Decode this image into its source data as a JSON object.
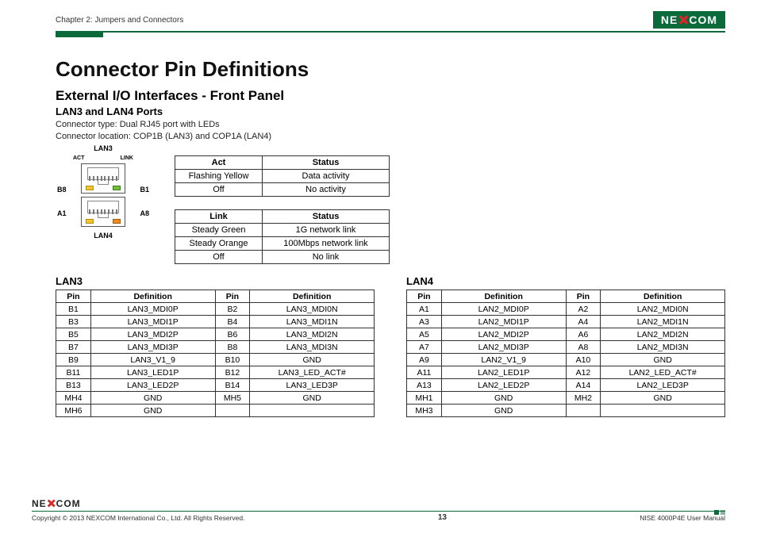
{
  "brand": "NEXCOM",
  "header": {
    "chapter": "Chapter 2: Jumpers and Connectors"
  },
  "title": "Connector Pin Definitions",
  "subtitle": "External I/O Interfaces - Front Panel",
  "section": "LAN3 and LAN4 Ports",
  "connector_type": "Connector type: Dual RJ45 port with LEDs",
  "connector_location": "Connector location: COP1B (LAN3) and COP1A (LAN4)",
  "diagram_labels": {
    "top": "LAN3",
    "bottom": "LAN4",
    "act": "ACT",
    "link": "LINK",
    "b8": "B8",
    "b1": "B1",
    "a1": "A1",
    "a8": "A8"
  },
  "act_table": {
    "headers": [
      "Act",
      "Status"
    ],
    "rows": [
      [
        "Flashing Yellow",
        "Data activity"
      ],
      [
        "Off",
        "No activity"
      ]
    ]
  },
  "link_table": {
    "headers": [
      "Link",
      "Status"
    ],
    "rows": [
      [
        "Steady Green",
        "1G network link"
      ],
      [
        "Steady Orange",
        "100Mbps network link"
      ],
      [
        "Off",
        "No link"
      ]
    ]
  },
  "lan3": {
    "title": "LAN3",
    "headers": [
      "Pin",
      "Definition",
      "Pin",
      "Definition"
    ],
    "rows": [
      [
        "B1",
        "LAN3_MDI0P",
        "B2",
        "LAN3_MDI0N"
      ],
      [
        "B3",
        "LAN3_MDI1P",
        "B4",
        "LAN3_MDI1N"
      ],
      [
        "B5",
        "LAN3_MDI2P",
        "B6",
        "LAN3_MDI2N"
      ],
      [
        "B7",
        "LAN3_MDI3P",
        "B8",
        "LAN3_MDI3N"
      ],
      [
        "B9",
        "LAN3_V1_9",
        "B10",
        "GND"
      ],
      [
        "B11",
        "LAN3_LED1P",
        "B12",
        "LAN3_LED_ACT#"
      ],
      [
        "B13",
        "LAN3_LED2P",
        "B14",
        "LAN3_LED3P"
      ],
      [
        "MH4",
        "GND",
        "MH5",
        "GND"
      ],
      [
        "MH6",
        "GND",
        "",
        ""
      ]
    ]
  },
  "lan4": {
    "title": "LAN4",
    "headers": [
      "Pin",
      "Definition",
      "Pin",
      "Definition"
    ],
    "rows": [
      [
        "A1",
        "LAN2_MDI0P",
        "A2",
        "LAN2_MDI0N"
      ],
      [
        "A3",
        "LAN2_MDI1P",
        "A4",
        "LAN2_MDI1N"
      ],
      [
        "A5",
        "LAN2_MDI2P",
        "A6",
        "LAN2_MDI2N"
      ],
      [
        "A7",
        "LAN2_MDI3P",
        "A8",
        "LAN2_MDI3N"
      ],
      [
        "A9",
        "LAN2_V1_9",
        "A10",
        "GND"
      ],
      [
        "A11",
        "LAN2_LED1P",
        "A12",
        "LAN2_LED_ACT#"
      ],
      [
        "A13",
        "LAN2_LED2P",
        "A14",
        "LAN2_LED3P"
      ],
      [
        "MH1",
        "GND",
        "MH2",
        "GND"
      ],
      [
        "MH3",
        "GND",
        "",
        ""
      ]
    ]
  },
  "footer": {
    "copyright": "Copyright © 2013 NEXCOM International Co., Ltd. All Rights Reserved.",
    "page": "13",
    "manual": "NISE 4000P4E User Manual"
  }
}
